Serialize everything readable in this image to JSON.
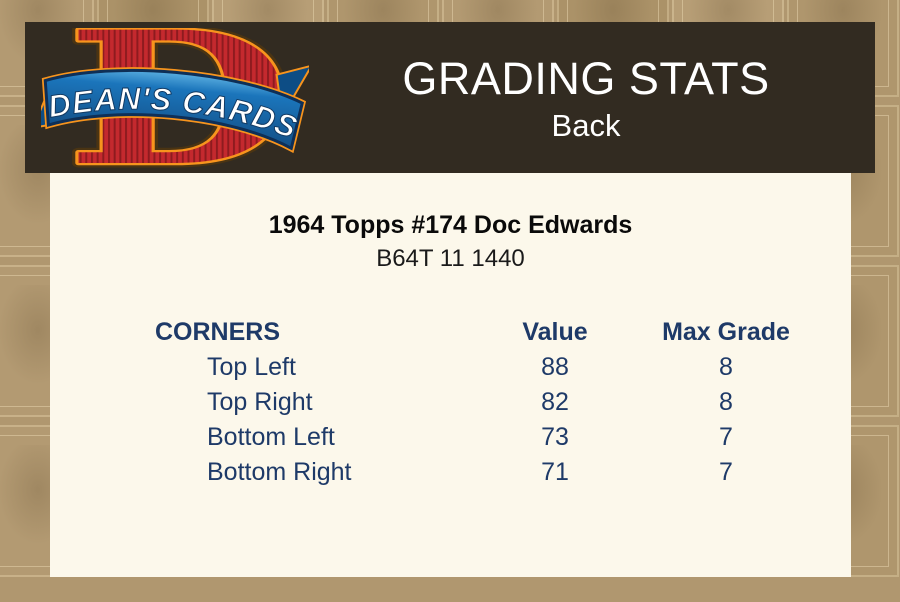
{
  "header": {
    "title": "GRADING STATS",
    "subtitle": "Back",
    "logo": {
      "brand": "DEAN'S CARDS",
      "letter": "D"
    }
  },
  "card": {
    "title": "1964 Topps #174 Doc Edwards",
    "code": "B64T 11 1440"
  },
  "table": {
    "headers": [
      "CORNERS",
      "Value",
      "Max Grade"
    ],
    "rows": [
      {
        "label": "Top Left",
        "value": "88",
        "max_grade": "8"
      },
      {
        "label": "Top Right",
        "value": "82",
        "max_grade": "8"
      },
      {
        "label": "Bottom Left",
        "value": "73",
        "max_grade": "7"
      },
      {
        "label": "Bottom Right",
        "value": "71",
        "max_grade": "7"
      }
    ]
  },
  "colors": {
    "header_bg": "#322B21",
    "panel_bg": "#FCF8EB",
    "page_bg": "#B0976F",
    "table_text": "#1E3A68",
    "logo_red": "#C4292E",
    "logo_red_dark": "#8E1B1F",
    "logo_orange": "#F7941D",
    "logo_blue": "#1B75BB",
    "logo_blue_light": "#5AAEE0",
    "logo_navy": "#0E2F57"
  }
}
